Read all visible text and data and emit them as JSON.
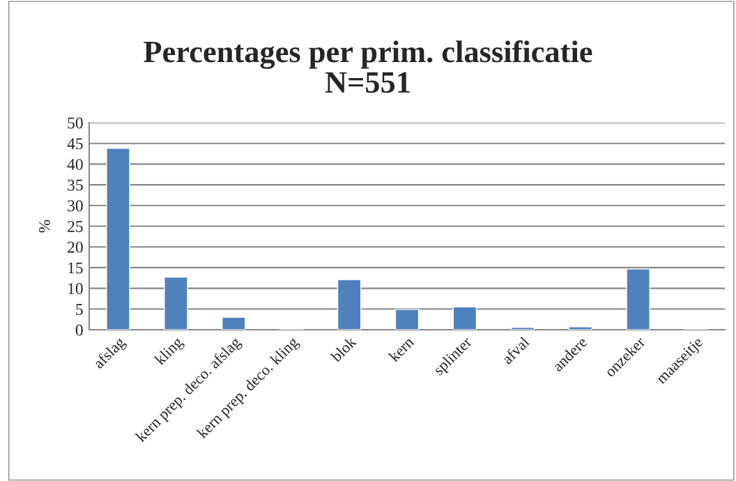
{
  "chart_data": {
    "type": "bar",
    "title": "Percentages per prim. classificatie\nN=551",
    "ylabel": "%",
    "categories": [
      "afslag",
      "kling",
      "kern prep. deco. afslag",
      "kern prep. deco. kling",
      "blok",
      "kern",
      "splinter",
      "afval",
      "andere",
      "onzeker",
      "maaseitje"
    ],
    "values": [
      43.8,
      12.7,
      3.0,
      0.3,
      12.1,
      4.9,
      5.5,
      0.6,
      0.7,
      14.7,
      0.3
    ],
    "color": "#4f81bd",
    "ylim": [
      0,
      50
    ],
    "yticks": [
      0,
      5,
      10,
      15,
      20,
      25,
      30,
      35,
      40,
      45,
      50
    ],
    "grid": "y",
    "legend": false
  }
}
